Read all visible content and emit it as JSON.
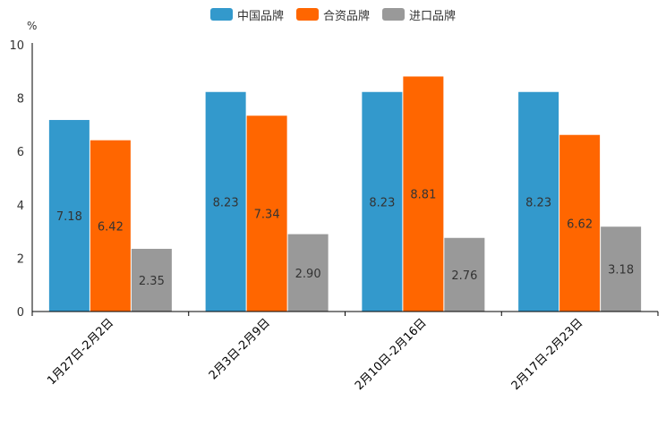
{
  "chart_data": {
    "type": "bar",
    "unit": "%",
    "ylim": [
      0,
      10
    ],
    "yticks": [
      "0",
      "2",
      "4",
      "6",
      "8",
      "10"
    ],
    "categories": [
      "1月27日-2月2日",
      "2月3日-2月9日",
      "2月10日-2月16日",
      "2月17日-2月23日"
    ],
    "series": [
      {
        "name": "中国品牌",
        "color": "#3399cc",
        "values": [
          7.18,
          8.23,
          8.23,
          8.23
        ],
        "labels": [
          "7.18",
          "8.23",
          "8.23",
          "8.23"
        ]
      },
      {
        "name": "合资品牌",
        "color": "#ff6600",
        "values": [
          6.42,
          7.34,
          8.81,
          6.62
        ],
        "labels": [
          "6.42",
          "7.34",
          "8.81",
          "6.62"
        ]
      },
      {
        "name": "进口品牌",
        "color": "#999999",
        "values": [
          2.35,
          2.9,
          2.76,
          3.18
        ],
        "labels": [
          "2.35",
          "2.90",
          "2.76",
          "3.18"
        ]
      }
    ],
    "legend": "top-center"
  }
}
